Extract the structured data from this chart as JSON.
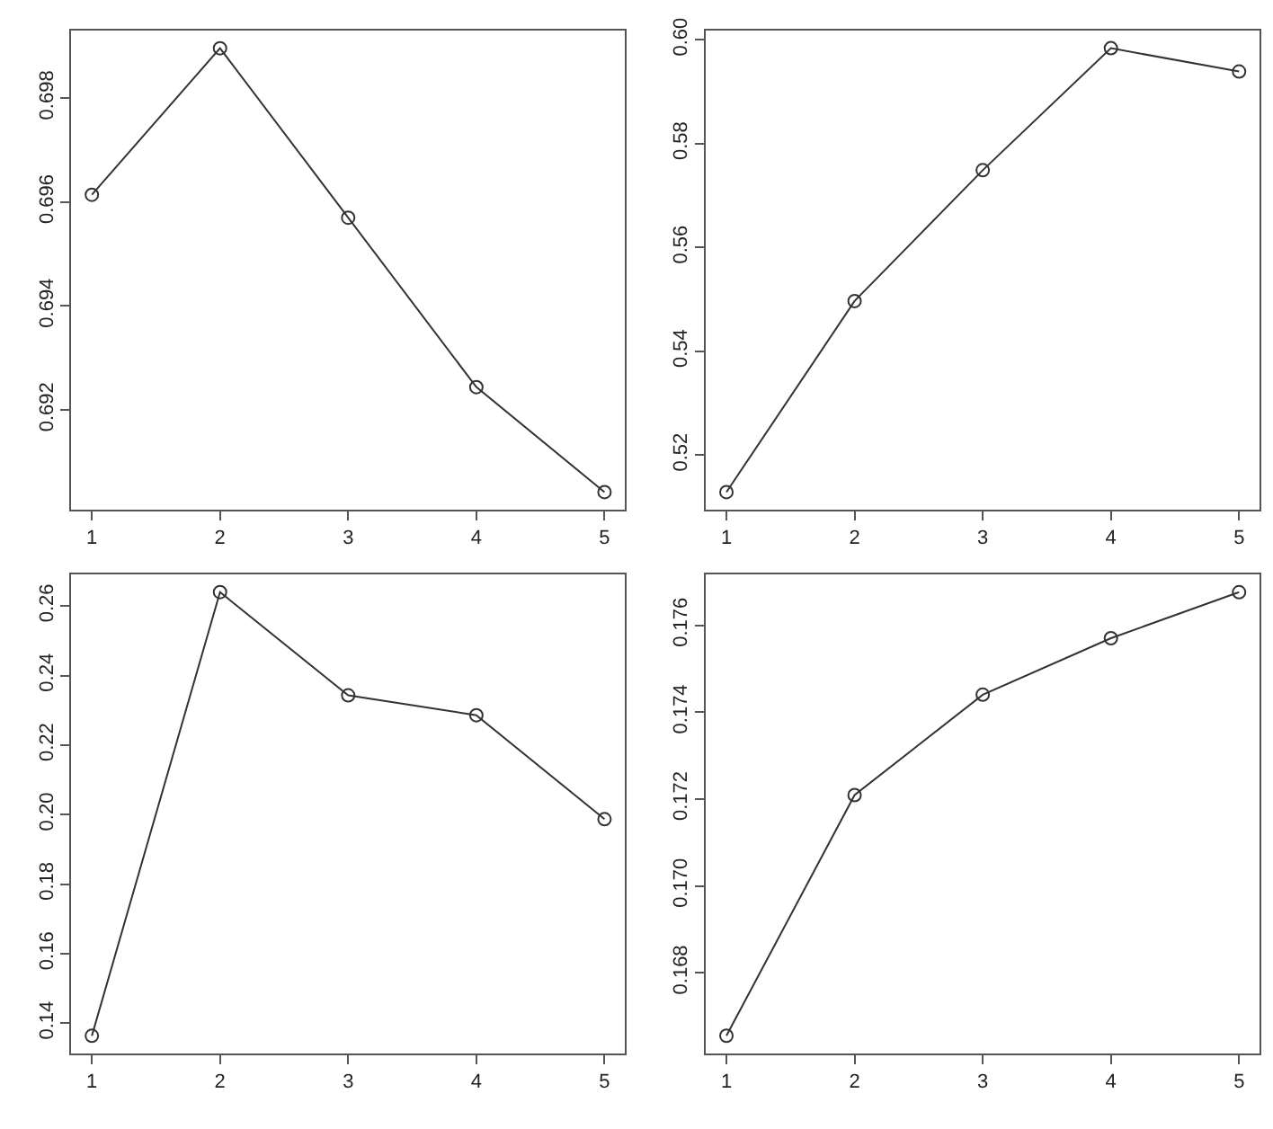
{
  "chart_data": [
    {
      "type": "line",
      "x": [
        1,
        2,
        3,
        4,
        5
      ],
      "values": [
        0.69614,
        0.69896,
        0.6957,
        0.69244,
        0.69042
      ],
      "color": "#333333",
      "marker": "circle",
      "line_style": "solid",
      "xlim": [
        0.84,
        5.16
      ],
      "xticks": [
        1,
        2,
        3,
        4,
        5
      ],
      "ylim": [
        0.69008,
        0.6993
      ],
      "yticks": [
        0.692,
        0.694,
        0.696,
        0.698
      ]
    },
    {
      "type": "line",
      "x": [
        1,
        2,
        3,
        4,
        5
      ],
      "values": [
        0.5129,
        0.5497,
        0.5749,
        0.5984,
        0.5939
      ],
      "color": "#333333",
      "marker": "circle",
      "line_style": "solid",
      "xlim": [
        0.84,
        5.16
      ],
      "xticks": [
        1,
        2,
        3,
        4,
        5
      ],
      "ylim": [
        0.5095,
        0.6018
      ],
      "yticks": [
        0.52,
        0.54,
        0.56,
        0.58,
        {
          "value": 0.6,
          "label": "0.60"
        }
      ]
    },
    {
      "type": "line",
      "x": [
        1,
        2,
        3,
        4,
        5
      ],
      "values": [
        0.1364,
        0.264,
        0.2343,
        0.2286,
        0.1987
      ],
      "color": "#333333",
      "marker": "circle",
      "line_style": "solid",
      "xlim": [
        0.84,
        5.16
      ],
      "xticks": [
        1,
        2,
        3,
        4,
        5
      ],
      "ylim": [
        0.1313,
        0.2691
      ],
      "yticks": [
        0.14,
        0.16,
        0.18,
        {
          "value": 0.2,
          "label": "0.20"
        },
        0.22,
        0.24,
        0.26
      ]
    },
    {
      "type": "line",
      "x": [
        1,
        2,
        3,
        4,
        5
      ],
      "values": [
        0.16655,
        0.17209,
        0.1744,
        0.1757,
        0.17676
      ],
      "color": "#333333",
      "marker": "circle",
      "line_style": "solid",
      "xlim": [
        0.84,
        5.16
      ],
      "xticks": [
        1,
        2,
        3,
        4,
        5
      ],
      "ylim": [
        0.16614,
        0.17717
      ],
      "yticks": [
        0.168,
        {
          "value": 0.17,
          "label": "0.170"
        },
        0.172,
        0.174,
        0.176
      ]
    }
  ]
}
